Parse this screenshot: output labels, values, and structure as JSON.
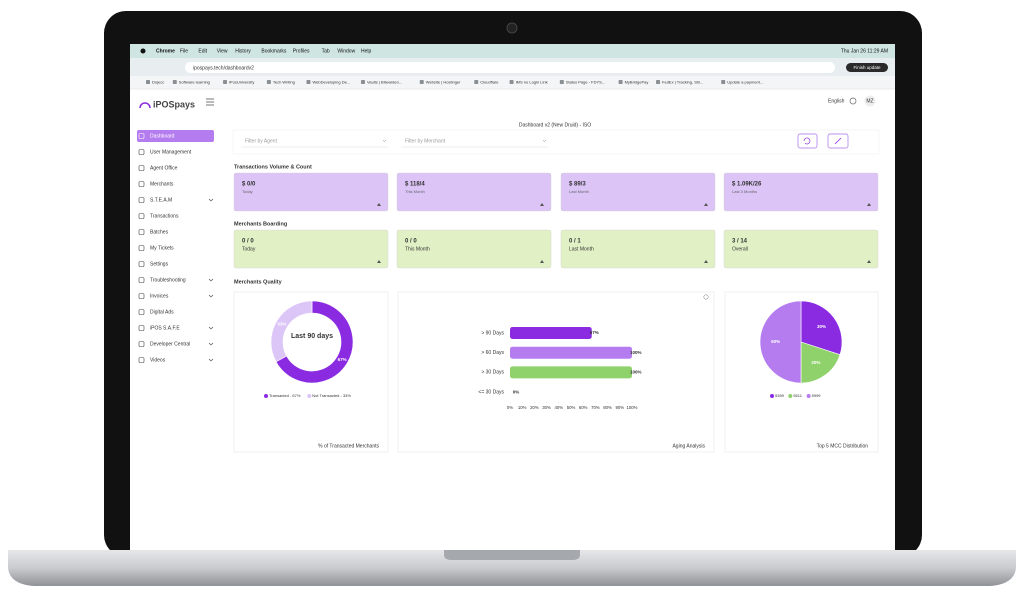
{
  "menubar": {
    "app": "Chrome",
    "menus": [
      "File",
      "Edit",
      "View",
      "History",
      "Bookmarks",
      "Profiles",
      "Tab",
      "Window",
      "Help"
    ],
    "clock": "Thu Jan 26  11:29 AM"
  },
  "browser": {
    "url": "ipospays.tech/dashboardv2",
    "update": "Finish update",
    "bookmarks": [
      "Dojecc",
      "Software learning",
      "iPosUniversity",
      "Tech Writing",
      "WebDeveloping De...",
      "Vaults | Bitwarden...",
      "Website | Hostinger",
      "Cloudflare",
      "IMS no Login Link",
      "Status Page - FDYS...",
      "MyBridgePay",
      "FedEx | Tracking, Shi...",
      "Update a payment..."
    ]
  },
  "sidebar": {
    "logo": "iPOSpays",
    "items": [
      {
        "label": "Dashboard",
        "active": true
      },
      {
        "label": "User Management"
      },
      {
        "label": "Agent Office"
      },
      {
        "label": "Merchants"
      },
      {
        "label": "S.T.E.A.M",
        "expandable": true
      },
      {
        "label": "Transactions"
      },
      {
        "label": "Batches"
      },
      {
        "label": "My Tickets"
      },
      {
        "label": "Settings"
      },
      {
        "label": "Troubleshooting",
        "expandable": true
      },
      {
        "label": "Invoices",
        "expandable": true
      },
      {
        "label": "Digital Ads"
      },
      {
        "label": "iPOS S.A.F.E",
        "expandable": true
      },
      {
        "label": "Developer Central",
        "expandable": true
      },
      {
        "label": "Videos",
        "expandable": true
      }
    ]
  },
  "header": {
    "language": "English",
    "avatar": "MZ"
  },
  "dashboard": {
    "title": "Dashboard v2 (New Druid) - ISO",
    "filters": [
      "Filter by Agent",
      "Filter by Merchant"
    ],
    "sections": [
      {
        "title": "Transactions Volume & Count",
        "color": "#dcc4f6",
        "cards": [
          {
            "value": "$ 0/0",
            "label": "Today"
          },
          {
            "value": "$ 118/4",
            "label": "This Month"
          },
          {
            "value": "$ 89/3",
            "label": "Last Month"
          },
          {
            "value": "$ 1.09K/26",
            "label": "Last 3 Months"
          }
        ]
      },
      {
        "title": "Merchants Boarding",
        "color": "#e2f0c6",
        "cards": [
          {
            "value": "0 / 0",
            "label": "Today"
          },
          {
            "value": "0 / 0",
            "label": "This Month"
          },
          {
            "value": "0 / 1",
            "label": "Last Month"
          },
          {
            "value": "3 / 14",
            "label": "Overall"
          }
        ]
      }
    ],
    "quality_title": "Merchants Quality"
  },
  "chart_data": [
    {
      "type": "donut",
      "title": "% of Transacted Merchants",
      "center_label": "Last 90 days",
      "categories": [
        "Transacted - 67%",
        "Not Transacted - 33%"
      ],
      "values": [
        67,
        33
      ],
      "value_labels": [
        "67%",
        "33%"
      ],
      "colors": [
        "#8a2be2",
        "#dcc6f7"
      ]
    },
    {
      "type": "bar",
      "title": "Aging Analysis",
      "categories": [
        "> 90 Days",
        "> 60 Days",
        "> 30 Days",
        "<= 30 Days"
      ],
      "values": [
        67,
        100,
        100,
        0
      ],
      "value_labels": [
        "67%",
        "100%",
        "100%",
        "0%"
      ],
      "colors": [
        "#8a2be2",
        "#b57cf0",
        "#8fd16a",
        "#8fd16a"
      ],
      "xlim": [
        0,
        100
      ],
      "xticks": [
        {
          "value": 0,
          "label": "0%"
        },
        {
          "value": 10,
          "label": "10%"
        },
        {
          "value": 20,
          "label": "20%"
        },
        {
          "value": 30,
          "label": "30%"
        },
        {
          "value": 40,
          "label": "40%"
        },
        {
          "value": 50,
          "label": "50%"
        },
        {
          "value": 60,
          "label": "60%"
        },
        {
          "value": 70,
          "label": "70%"
        },
        {
          "value": 80,
          "label": "80%"
        },
        {
          "value": 90,
          "label": "90%"
        },
        {
          "value": 100,
          "label": "100%"
        }
      ]
    },
    {
      "type": "pie",
      "title": "Top 5 MCC Distribution",
      "categories": [
        "5399",
        "5511",
        "5999"
      ],
      "values": [
        30,
        20,
        50
      ],
      "value_labels": [
        "30%",
        "20%",
        "50%"
      ],
      "colors": [
        "#8a2be2",
        "#8fd16a",
        "#b57cf0"
      ]
    }
  ]
}
